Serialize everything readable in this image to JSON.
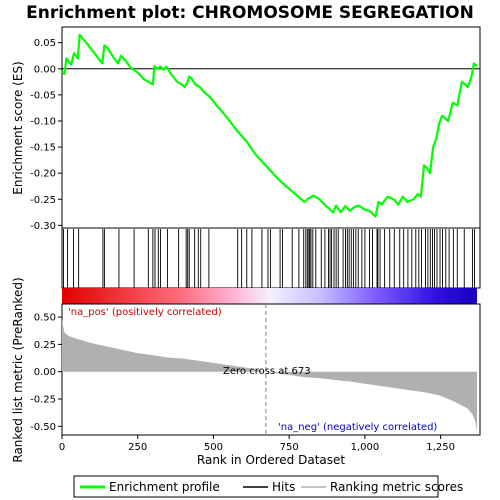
{
  "chart_data": [
    {
      "type": "line",
      "title": "Enrichment plot: CHROMOSOME SEGREGATION",
      "ylabel": "Enrichment score (ES)",
      "xlim": [
        0,
        1380
      ],
      "ylim": [
        -0.305,
        0.08
      ],
      "yticks": [
        0.05,
        0.0,
        -0.05,
        -0.1,
        -0.15,
        -0.2,
        -0.25,
        -0.3
      ],
      "ytick_labels": [
        "0.05",
        "0.00",
        "-0.05",
        "-0.10",
        "-0.15",
        "-0.20",
        "-0.25",
        "-0.30"
      ],
      "series": [
        {
          "name": "Enrichment profile",
          "color": "#00ff00",
          "x": [
            0,
            8,
            15,
            30,
            40,
            52,
            58,
            65,
            80,
            100,
            120,
            133,
            140,
            150,
            170,
            185,
            195,
            210,
            230,
            245,
            255,
            270,
            285,
            300,
            305,
            315,
            325,
            335,
            345,
            360,
            380,
            395,
            405,
            415,
            420,
            430,
            440,
            455,
            470,
            490,
            510,
            540,
            580,
            610,
            640,
            680,
            720,
            770,
            800,
            815,
            830,
            850,
            870,
            895,
            905,
            920,
            935,
            950,
            965,
            980,
            1000,
            1015,
            1035,
            1045,
            1055,
            1075,
            1095,
            1110,
            1125,
            1140,
            1160,
            1175,
            1185,
            1195,
            1205,
            1215,
            1225,
            1235,
            1245,
            1255,
            1265,
            1275,
            1290,
            1305,
            1320,
            1340,
            1352,
            1360,
            1370
          ],
          "y": [
            -0.005,
            -0.01,
            0.02,
            0.008,
            0.03,
            0.02,
            0.065,
            0.06,
            0.05,
            0.035,
            0.02,
            0.01,
            0.045,
            0.04,
            0.022,
            0.01,
            0.025,
            0.015,
            0.0,
            -0.005,
            -0.01,
            -0.02,
            -0.025,
            -0.03,
            0.005,
            0.0,
            0.004,
            -0.002,
            0.004,
            -0.01,
            -0.025,
            -0.03,
            -0.035,
            -0.025,
            -0.015,
            -0.02,
            -0.03,
            -0.035,
            -0.045,
            -0.055,
            -0.07,
            -0.09,
            -0.12,
            -0.14,
            -0.165,
            -0.19,
            -0.215,
            -0.24,
            -0.255,
            -0.248,
            -0.243,
            -0.25,
            -0.262,
            -0.275,
            -0.262,
            -0.275,
            -0.263,
            -0.272,
            -0.265,
            -0.262,
            -0.27,
            -0.272,
            -0.283,
            -0.255,
            -0.26,
            -0.245,
            -0.25,
            -0.26,
            -0.245,
            -0.255,
            -0.25,
            -0.24,
            -0.245,
            -0.185,
            -0.19,
            -0.2,
            -0.15,
            -0.135,
            -0.105,
            -0.09,
            -0.095,
            -0.1,
            -0.065,
            -0.07,
            -0.025,
            -0.035,
            -0.015,
            0.01,
            0.005
          ]
        }
      ]
    },
    {
      "type": "heatmap",
      "name": "Hits",
      "hit_positions": [
        5,
        18,
        38,
        55,
        135,
        140,
        188,
        238,
        285,
        300,
        307,
        318,
        325,
        348,
        385,
        410,
        415,
        420,
        438,
        450,
        458,
        485,
        580,
        593,
        610,
        627,
        660,
        680,
        688,
        720,
        728,
        760,
        782,
        798,
        805,
        810,
        815,
        818,
        822,
        828,
        838,
        856,
        868,
        880,
        885,
        890,
        898,
        905,
        912,
        928,
        936,
        942,
        948,
        955,
        962,
        970,
        978,
        990,
        1000,
        1015,
        1025,
        1040,
        1043,
        1050,
        1065,
        1082,
        1097,
        1115,
        1128,
        1142,
        1155,
        1168,
        1178,
        1187,
        1200,
        1208,
        1216,
        1223,
        1230,
        1238,
        1248,
        1256,
        1267,
        1278,
        1292,
        1305,
        1328,
        1355,
        1362
      ],
      "rank_color_gradient": [
        "#ff0000",
        "#ffffff",
        "#0000ff"
      ]
    },
    {
      "type": "area",
      "ylabel": "Ranked list metric (PreRanked)",
      "xlabel": "Rank in Ordered Dataset",
      "xlim": [
        0,
        1380
      ],
      "ylim": [
        -0.58,
        0.62
      ],
      "xticks": [
        0,
        250,
        500,
        750,
        1000,
        1250
      ],
      "xtick_labels": [
        "0",
        "250",
        "500",
        "750",
        "1,000",
        "1,250"
      ],
      "yticks": [
        0.5,
        0.25,
        0.0,
        -0.25,
        -0.5
      ],
      "ytick_labels": [
        "0.50",
        "0.25",
        "0.00",
        "-0.25",
        "-0.50"
      ],
      "series": [
        {
          "name": "Ranking metric scores",
          "color": "#b0b0b0",
          "x": [
            0,
            3,
            8,
            20,
            50,
            100,
            150,
            200,
            250,
            300,
            350,
            400,
            450,
            500,
            550,
            600,
            650,
            673,
            700,
            750,
            800,
            850,
            900,
            950,
            1000,
            1050,
            1100,
            1150,
            1200,
            1250,
            1300,
            1320,
            1340,
            1355,
            1365,
            1370
          ],
          "y": [
            0.48,
            0.43,
            0.36,
            0.33,
            0.3,
            0.26,
            0.23,
            0.2,
            0.17,
            0.15,
            0.13,
            0.12,
            0.1,
            0.08,
            0.06,
            0.04,
            0.015,
            0.0,
            -0.01,
            -0.03,
            -0.05,
            -0.06,
            -0.075,
            -0.09,
            -0.11,
            -0.13,
            -0.15,
            -0.17,
            -0.19,
            -0.22,
            -0.28,
            -0.31,
            -0.34,
            -0.39,
            -0.46,
            -0.55
          ]
        }
      ],
      "annotations": {
        "positive": "'na_pos' (positively correlated)",
        "negative": "'na_neg' (negatively correlated)",
        "zero_cross": "Zero cross at 673",
        "zero_cross_rank": 673
      }
    }
  ],
  "legend": {
    "items": [
      {
        "label": "Enrichment profile",
        "color": "#00ff00"
      },
      {
        "label": "Hits",
        "color": "#000000"
      },
      {
        "label": "Ranking metric scores",
        "color": "#b0b0b0"
      }
    ]
  },
  "colors": {
    "pos_annotation": "#cc0000",
    "neg_annotation": "#0000cc",
    "zero_line": "#808080"
  }
}
